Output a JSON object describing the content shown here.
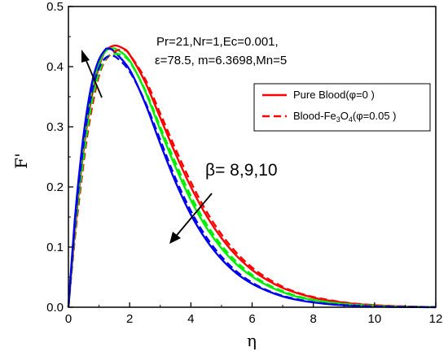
{
  "chart_data": {
    "type": "line",
    "title": "",
    "xlabel": "η",
    "ylabel": "F'",
    "xlim": [
      0,
      12
    ],
    "ylim": [
      0,
      0.5
    ],
    "xticks": [
      "0",
      "2",
      "4",
      "6",
      "8",
      "10",
      "12"
    ],
    "yticks": [
      "0.0",
      "0.1",
      "0.2",
      "0.3",
      "0.4",
      "0.5"
    ],
    "annotation_lines": [
      "Pr=21,Nr=1,Ec=0.001,",
      "ε=78.5, m=6.3698,Mn=5"
    ],
    "beta_label": "β= 8,9,10",
    "legend": {
      "placement": "right",
      "entries": [
        {
          "label": "Pure Blood(φ=0 )",
          "style": "solid"
        },
        {
          "label": "Blood-Fe3O4(φ=0.05 )",
          "style": "dashed",
          "prefix": "Blood-Fe",
          "sub1": "3",
          "mid": "O",
          "sub2": "4",
          "suffix": "(φ=0.05 )"
        }
      ]
    },
    "series": [
      {
        "color": "#ff0000",
        "style": "solid",
        "points": [
          [
            0,
            0
          ],
          [
            0.2,
            0.12
          ],
          [
            0.4,
            0.22
          ],
          [
            0.6,
            0.3
          ],
          [
            0.8,
            0.36
          ],
          [
            1.0,
            0.4
          ],
          [
            1.2,
            0.425
          ],
          [
            1.5,
            0.435
          ],
          [
            1.8,
            0.43
          ],
          [
            2.0,
            0.42
          ],
          [
            2.5,
            0.375
          ],
          [
            3.0,
            0.315
          ],
          [
            3.5,
            0.255
          ],
          [
            4.0,
            0.2
          ],
          [
            4.5,
            0.153
          ],
          [
            5.0,
            0.115
          ],
          [
            5.5,
            0.085
          ],
          [
            6.0,
            0.062
          ],
          [
            6.5,
            0.045
          ],
          [
            7.0,
            0.032
          ],
          [
            7.5,
            0.023
          ],
          [
            8.0,
            0.016
          ],
          [
            8.5,
            0.011
          ],
          [
            9.0,
            0.0075
          ],
          [
            9.5,
            0.005
          ],
          [
            10.0,
            0.0033
          ],
          [
            10.5,
            0.002
          ],
          [
            11.0,
            0.0012
          ],
          [
            11.5,
            0.0006
          ],
          [
            12.0,
            0.0003
          ]
        ]
      },
      {
        "color": "#00ee00",
        "style": "solid",
        "points": [
          [
            0,
            0
          ],
          [
            0.2,
            0.13
          ],
          [
            0.4,
            0.23
          ],
          [
            0.6,
            0.31
          ],
          [
            0.8,
            0.37
          ],
          [
            1.0,
            0.405
          ],
          [
            1.2,
            0.425
          ],
          [
            1.4,
            0.43
          ],
          [
            1.6,
            0.428
          ],
          [
            2.0,
            0.41
          ],
          [
            2.5,
            0.36
          ],
          [
            3.0,
            0.295
          ],
          [
            3.5,
            0.233
          ],
          [
            4.0,
            0.178
          ],
          [
            4.5,
            0.133
          ],
          [
            5.0,
            0.098
          ],
          [
            5.5,
            0.071
          ],
          [
            6.0,
            0.051
          ],
          [
            6.5,
            0.036
          ],
          [
            7.0,
            0.025
          ],
          [
            7.5,
            0.017
          ],
          [
            8.0,
            0.012
          ],
          [
            8.5,
            0.008
          ],
          [
            9.0,
            0.0053
          ],
          [
            9.5,
            0.0034
          ],
          [
            10.0,
            0.0022
          ],
          [
            10.5,
            0.0013
          ],
          [
            11.0,
            0.0007
          ],
          [
            12.0,
            0.0002
          ]
        ]
      },
      {
        "color": "#0000ee",
        "style": "solid",
        "points": [
          [
            0,
            0
          ],
          [
            0.2,
            0.14
          ],
          [
            0.4,
            0.245
          ],
          [
            0.6,
            0.325
          ],
          [
            0.8,
            0.38
          ],
          [
            1.0,
            0.412
          ],
          [
            1.2,
            0.428
          ],
          [
            1.3,
            0.43
          ],
          [
            1.5,
            0.425
          ],
          [
            2.0,
            0.395
          ],
          [
            2.5,
            0.34
          ],
          [
            3.0,
            0.272
          ],
          [
            3.5,
            0.208
          ],
          [
            4.0,
            0.154
          ],
          [
            4.5,
            0.112
          ],
          [
            5.0,
            0.08
          ],
          [
            5.5,
            0.056
          ],
          [
            6.0,
            0.039
          ],
          [
            6.5,
            0.027
          ],
          [
            7.0,
            0.018
          ],
          [
            7.5,
            0.012
          ],
          [
            8.0,
            0.008
          ],
          [
            8.5,
            0.0052
          ],
          [
            9.0,
            0.0033
          ],
          [
            9.5,
            0.002
          ],
          [
            10.0,
            0.0012
          ],
          [
            11.0,
            0.0004
          ],
          [
            12.0,
            0.0001
          ]
        ]
      },
      {
        "color": "#ff0000",
        "style": "dashed",
        "points": [
          [
            0,
            0
          ],
          [
            0.2,
            0.11
          ],
          [
            0.4,
            0.2
          ],
          [
            0.6,
            0.28
          ],
          [
            0.8,
            0.34
          ],
          [
            1.0,
            0.385
          ],
          [
            1.2,
            0.41
          ],
          [
            1.5,
            0.425
          ],
          [
            1.8,
            0.428
          ],
          [
            2.0,
            0.42
          ],
          [
            2.5,
            0.38
          ],
          [
            3.0,
            0.322
          ],
          [
            3.5,
            0.263
          ],
          [
            4.0,
            0.208
          ],
          [
            4.5,
            0.16
          ],
          [
            5.0,
            0.121
          ],
          [
            5.5,
            0.09
          ],
          [
            6.0,
            0.066
          ],
          [
            6.5,
            0.048
          ],
          [
            7.0,
            0.034
          ],
          [
            7.5,
            0.024
          ],
          [
            8.0,
            0.017
          ],
          [
            8.5,
            0.012
          ],
          [
            9.0,
            0.008
          ],
          [
            9.5,
            0.0053
          ],
          [
            10.0,
            0.0035
          ],
          [
            10.5,
            0.0022
          ],
          [
            11.0,
            0.0013
          ],
          [
            11.5,
            0.0006
          ],
          [
            12.0,
            0.0003
          ]
        ]
      },
      {
        "color": "#00ee00",
        "style": "dashed",
        "points": [
          [
            0,
            0
          ],
          [
            0.2,
            0.12
          ],
          [
            0.4,
            0.21
          ],
          [
            0.6,
            0.29
          ],
          [
            0.8,
            0.35
          ],
          [
            1.0,
            0.39
          ],
          [
            1.2,
            0.412
          ],
          [
            1.4,
            0.42
          ],
          [
            1.7,
            0.42
          ],
          [
            2.0,
            0.408
          ],
          [
            2.5,
            0.362
          ],
          [
            3.0,
            0.3
          ],
          [
            3.5,
            0.24
          ],
          [
            4.0,
            0.185
          ],
          [
            4.5,
            0.139
          ],
          [
            5.0,
            0.103
          ],
          [
            5.5,
            0.075
          ],
          [
            6.0,
            0.054
          ],
          [
            6.5,
            0.038
          ],
          [
            7.0,
            0.027
          ],
          [
            7.5,
            0.018
          ],
          [
            8.0,
            0.0125
          ],
          [
            8.5,
            0.0085
          ],
          [
            9.0,
            0.0056
          ],
          [
            9.5,
            0.0036
          ],
          [
            10.0,
            0.0023
          ],
          [
            10.5,
            0.0014
          ],
          [
            11.0,
            0.0008
          ],
          [
            12.0,
            0.0002
          ]
        ]
      },
      {
        "color": "#0000ee",
        "style": "dashed",
        "points": [
          [
            0,
            0
          ],
          [
            0.2,
            0.13
          ],
          [
            0.4,
            0.23
          ],
          [
            0.6,
            0.31
          ],
          [
            0.8,
            0.365
          ],
          [
            1.0,
            0.398
          ],
          [
            1.2,
            0.414
          ],
          [
            1.4,
            0.418
          ],
          [
            1.6,
            0.414
          ],
          [
            2.0,
            0.392
          ],
          [
            2.5,
            0.342
          ],
          [
            3.0,
            0.278
          ],
          [
            3.5,
            0.214
          ],
          [
            4.0,
            0.16
          ],
          [
            4.5,
            0.117
          ],
          [
            5.0,
            0.084
          ],
          [
            5.5,
            0.059
          ],
          [
            6.0,
            0.041
          ],
          [
            6.5,
            0.028
          ],
          [
            7.0,
            0.019
          ],
          [
            7.5,
            0.013
          ],
          [
            8.0,
            0.0085
          ],
          [
            8.5,
            0.0055
          ],
          [
            9.0,
            0.0035
          ],
          [
            9.5,
            0.0022
          ],
          [
            10.0,
            0.0013
          ],
          [
            11.0,
            0.0004
          ],
          [
            12.0,
            0.0001
          ]
        ]
      }
    ]
  }
}
